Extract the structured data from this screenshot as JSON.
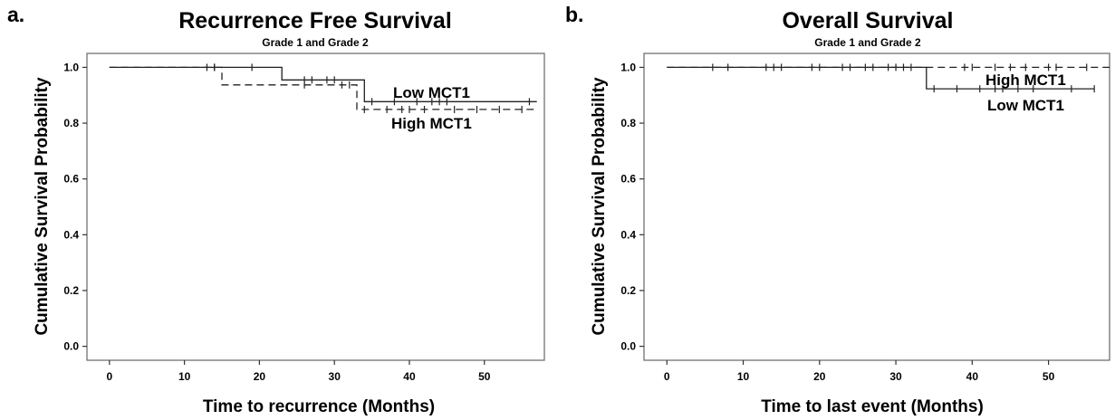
{
  "chart_data": [
    {
      "type": "line",
      "panel_letter": "a.",
      "title": "Recurrence Free Survival",
      "subtitle": "Grade 1 and Grade 2",
      "xlabel": "Time to recurrence (Months)",
      "ylabel": "Cumulative Survival Probability",
      "xlim": [
        -3,
        58
      ],
      "ylim": [
        -0.05,
        1.05
      ],
      "xticks": [
        0,
        10,
        20,
        30,
        40,
        50
      ],
      "yticks": [
        "0.0",
        "0.2",
        "0.4",
        "0.6",
        "0.8",
        "1.0"
      ],
      "grid": false,
      "series": [
        {
          "name": "Low MCT1",
          "dash": "solid",
          "steps": [
            [
              0,
              1.0
            ],
            [
              23,
              1.0
            ],
            [
              23,
              0.955
            ],
            [
              34,
              0.955
            ],
            [
              34,
              0.877
            ],
            [
              57,
              0.877
            ]
          ],
          "censor": [
            [
              14,
              1.0
            ],
            [
              19,
              1.0
            ],
            [
              26,
              0.955
            ],
            [
              27,
              0.955
            ],
            [
              29,
              0.955
            ],
            [
              30,
              0.955
            ],
            [
              35,
              0.877
            ],
            [
              38,
              0.877
            ],
            [
              41,
              0.877
            ],
            [
              43,
              0.877
            ],
            [
              44,
              0.877
            ],
            [
              45,
              0.877
            ],
            [
              56,
              0.877
            ]
          ]
        },
        {
          "name": "High MCT1",
          "dash": "dashed",
          "steps": [
            [
              0,
              1.0
            ],
            [
              15,
              1.0
            ],
            [
              15,
              0.937
            ],
            [
              33,
              0.937
            ],
            [
              33,
              0.849
            ],
            [
              57,
              0.849
            ]
          ],
          "censor": [
            [
              13,
              1.0
            ],
            [
              14,
              1.0
            ],
            [
              26,
              0.937
            ],
            [
              31,
              0.937
            ],
            [
              32,
              0.937
            ],
            [
              34,
              0.849
            ],
            [
              37,
              0.849
            ],
            [
              39,
              0.849
            ],
            [
              40,
              0.849
            ],
            [
              42,
              0.849
            ],
            [
              46,
              0.849
            ],
            [
              49,
              0.849
            ],
            [
              52,
              0.849
            ],
            [
              55,
              0.849
            ]
          ]
        }
      ]
    },
    {
      "type": "line",
      "panel_letter": "b.",
      "title": "Overall Survival",
      "subtitle": "Grade 1 and Grade 2",
      "xlabel": "Time to last event (Months)",
      "ylabel": "Cumulative Survival Probability",
      "xlim": [
        -3,
        58
      ],
      "ylim": [
        -0.05,
        1.05
      ],
      "xticks": [
        0,
        10,
        20,
        30,
        40,
        50
      ],
      "yticks": [
        "0.0",
        "0.2",
        "0.4",
        "0.6",
        "0.8",
        "1.0"
      ],
      "grid": false,
      "series": [
        {
          "name": "High MCT1",
          "dash": "dashed",
          "steps": [
            [
              0,
              1.0
            ],
            [
              58,
              1.0
            ]
          ],
          "censor": [
            [
              8,
              1.0
            ],
            [
              13,
              1.0
            ],
            [
              14,
              1.0
            ],
            [
              19,
              1.0
            ],
            [
              20,
              1.0
            ],
            [
              23,
              1.0
            ],
            [
              26,
              1.0
            ],
            [
              27,
              1.0
            ],
            [
              29,
              1.0
            ],
            [
              30,
              1.0
            ],
            [
              31,
              1.0
            ],
            [
              32,
              1.0
            ],
            [
              39,
              1.0
            ],
            [
              40,
              1.0
            ],
            [
              43,
              1.0
            ],
            [
              45,
              1.0
            ],
            [
              47,
              1.0
            ],
            [
              50,
              1.0
            ],
            [
              51,
              1.0
            ],
            [
              55,
              1.0
            ]
          ]
        },
        {
          "name": "Low MCT1",
          "dash": "solid",
          "steps": [
            [
              0,
              1.0
            ],
            [
              34,
              1.0
            ],
            [
              34,
              0.923
            ],
            [
              56,
              0.923
            ]
          ],
          "censor": [
            [
              6,
              1.0
            ],
            [
              15,
              1.0
            ],
            [
              24,
              1.0
            ],
            [
              35,
              0.923
            ],
            [
              38,
              0.923
            ],
            [
              41,
              0.923
            ],
            [
              43,
              0.923
            ],
            [
              44,
              0.923
            ],
            [
              46,
              0.923
            ],
            [
              48,
              0.923
            ],
            [
              53,
              0.923
            ],
            [
              56,
              0.923
            ]
          ]
        }
      ]
    }
  ]
}
